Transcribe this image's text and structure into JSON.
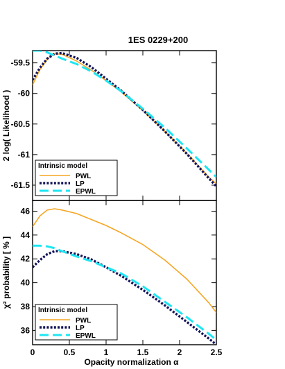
{
  "chart_data": [
    {
      "type": "line",
      "title": "1ES 0229+200",
      "xlabel": "",
      "ylabel": "2 log( Likelihood )",
      "xlim": [
        0,
        2.5
      ],
      "ylim": [
        -61.75,
        -59.3
      ],
      "yticks": [
        "-59.5",
        "-60",
        "-60.5",
        "-61",
        "-61.5"
      ],
      "yticks_values": [
        -59.5,
        -60,
        -60.5,
        -61,
        -61.5
      ],
      "legend": {
        "title": "Intrinsic model",
        "position": "bottom-left"
      },
      "series": [
        {
          "name": "PWL",
          "color": "#f5a623",
          "style": "solid",
          "x": [
            0,
            0.1,
            0.2,
            0.3,
            0.4,
            0.6,
            0.8,
            1.0,
            1.2,
            1.5,
            1.8,
            2.1,
            2.4,
            2.5
          ],
          "y": [
            -59.86,
            -59.61,
            -59.44,
            -59.35,
            -59.36,
            -59.47,
            -59.62,
            -59.79,
            -59.97,
            -60.28,
            -60.62,
            -60.98,
            -61.37,
            -61.48
          ]
        },
        {
          "name": "LP",
          "color": "#14145a",
          "style": "dotted",
          "x": [
            0,
            0.1,
            0.2,
            0.3,
            0.4,
            0.6,
            0.8,
            1.0,
            1.2,
            1.5,
            1.8,
            2.1,
            2.4,
            2.5
          ],
          "y": [
            -59.78,
            -59.58,
            -59.43,
            -59.35,
            -59.34,
            -59.42,
            -59.57,
            -59.76,
            -59.95,
            -60.27,
            -60.62,
            -60.99,
            -61.39,
            -61.52
          ]
        },
        {
          "name": "EPWL",
          "color": "#1de6f2",
          "style": "dashed",
          "x": [
            0,
            0.1,
            0.2,
            0.3,
            0.4,
            0.6,
            0.8,
            1.0,
            1.2,
            1.5,
            1.8,
            2.1,
            2.4,
            2.5
          ],
          "y": [
            -59.3,
            -59.3,
            -59.33,
            -59.38,
            -59.43,
            -59.52,
            -59.64,
            -59.79,
            -59.96,
            -60.25,
            -60.56,
            -60.9,
            -61.25,
            -61.37
          ]
        }
      ]
    },
    {
      "type": "line",
      "title": "",
      "xlabel": "Opacity normalization α",
      "ylabel": "χ² probability [ % ]",
      "xlim": [
        0,
        2.5
      ],
      "ylim": [
        34.8,
        46.9
      ],
      "xticks": [
        "0",
        "0.5",
        "1",
        "1.5",
        "2",
        "2.5"
      ],
      "xticks_values": [
        0,
        0.5,
        1,
        1.5,
        2,
        2.5
      ],
      "yticks": [
        "36",
        "38",
        "40",
        "42",
        "44",
        "46"
      ],
      "yticks_values": [
        36,
        38,
        40,
        42,
        44,
        46
      ],
      "legend": {
        "title": "Intrinsic model",
        "position": "bottom-left"
      },
      "series": [
        {
          "name": "PWL",
          "color": "#f5a623",
          "style": "solid",
          "x": [
            0,
            0.1,
            0.2,
            0.3,
            0.4,
            0.6,
            0.8,
            1.0,
            1.2,
            1.5,
            1.8,
            2.1,
            2.4,
            2.5
          ],
          "y": [
            44.7,
            45.6,
            46.1,
            46.2,
            46.1,
            45.8,
            45.3,
            44.8,
            44.2,
            43.2,
            41.9,
            40.3,
            38.3,
            37.5
          ]
        },
        {
          "name": "LP",
          "color": "#14145a",
          "style": "dotted",
          "x": [
            0,
            0.1,
            0.2,
            0.3,
            0.4,
            0.6,
            0.8,
            1.0,
            1.2,
            1.5,
            1.8,
            2.1,
            2.4,
            2.5
          ],
          "y": [
            41.3,
            41.9,
            42.4,
            42.65,
            42.65,
            42.4,
            41.95,
            41.3,
            40.6,
            39.4,
            38.1,
            36.7,
            35.3,
            34.8
          ]
        },
        {
          "name": "EPWL",
          "color": "#1de6f2",
          "style": "dashed",
          "x": [
            0,
            0.1,
            0.2,
            0.3,
            0.4,
            0.6,
            0.8,
            1.0,
            1.2,
            1.5,
            1.8,
            2.1,
            2.4,
            2.5
          ],
          "y": [
            43.1,
            43.1,
            43.05,
            42.9,
            42.65,
            42.2,
            41.8,
            41.3,
            40.8,
            39.7,
            38.4,
            37.1,
            35.7,
            35.2
          ]
        }
      ]
    }
  ]
}
